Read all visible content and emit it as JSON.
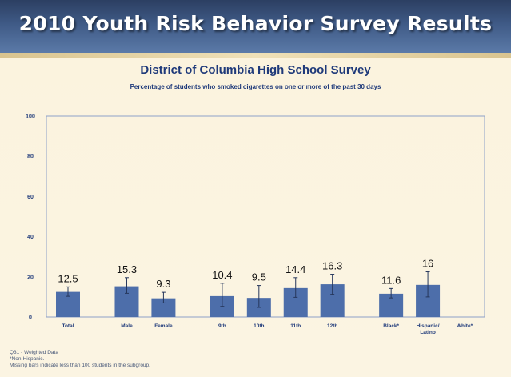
{
  "banner": {
    "title": "2010 Youth Risk Behavior Survey Results"
  },
  "colors": {
    "bar": "#4d6eaa",
    "axis_text": "#1f3a7a",
    "banner": "#3f5a86"
  },
  "chart_data": {
    "type": "bar",
    "title": "District of Columbia High School Survey",
    "subtitle": "Percentage of students who smoked cigarettes on one or more of the past 30 days",
    "xlabel": "",
    "ylabel": "",
    "ylim": [
      0,
      100
    ],
    "yticks": [
      0,
      20,
      40,
      60,
      80,
      100
    ],
    "grid": false,
    "error_bars": true,
    "categories": [
      "Total",
      "Male",
      "Female",
      "9th",
      "10th",
      "11th",
      "12th",
      "Black*",
      "Hispanic/ Latino",
      "White*"
    ],
    "category_lines": [
      [
        "Total"
      ],
      [
        "Male"
      ],
      [
        "Female"
      ],
      [
        "9th"
      ],
      [
        "10th"
      ],
      [
        "11th"
      ],
      [
        "12th"
      ],
      [
        "Black*"
      ],
      [
        "Hispanic/",
        "Latino"
      ],
      [
        "White*"
      ]
    ],
    "groups": [
      [
        "Total"
      ],
      [
        "Male",
        "Female"
      ],
      [
        "9th",
        "10th",
        "11th",
        "12th"
      ],
      [
        "Black*",
        "Hispanic/ Latino",
        "White*"
      ]
    ],
    "values": [
      12.5,
      15.3,
      9.3,
      10.4,
      9.5,
      14.4,
      16.3,
      11.6,
      16,
      null
    ],
    "value_labels": [
      "12.5",
      "15.3",
      "9.3",
      "10.4",
      "9.5",
      "14.4",
      "16.3",
      "11.6",
      "16",
      ""
    ],
    "ci_low": [
      10.3,
      11.8,
      7.0,
      5.3,
      4.8,
      9.8,
      11.3,
      9.5,
      10.0,
      null
    ],
    "ci_high": [
      15.0,
      19.6,
      12.3,
      16.8,
      15.7,
      19.6,
      21.3,
      14.2,
      22.5,
      null
    ]
  },
  "footnotes": [
    "Q31 - Weighted Data",
    "*Non-Hispanic.",
    "Missing bars indicate less than 100 students in the subgroup."
  ]
}
